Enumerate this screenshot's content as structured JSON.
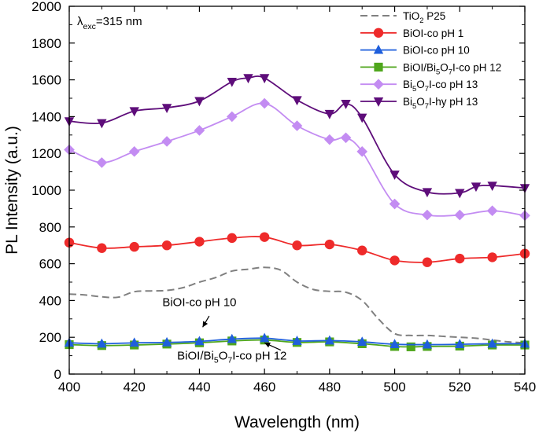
{
  "chart_data": {
    "type": "line",
    "title": "",
    "annotation_excitation": {
      "symbol": "λ",
      "subscript": "exc",
      "text": "=315 nm"
    },
    "xlabel": "Wavelength (nm)",
    "ylabel": "PL Intensity (a.u.)",
    "xlim": [
      400,
      540
    ],
    "ylim": [
      0,
      2000
    ],
    "xticks": [
      400,
      420,
      440,
      460,
      480,
      500,
      520,
      540
    ],
    "yticks": [
      0,
      200,
      400,
      600,
      800,
      1000,
      1200,
      1400,
      1600,
      1800,
      2000
    ],
    "grid": false,
    "legend_position": "top-right",
    "series": [
      {
        "name": "TiO2 P25",
        "legend": [
          {
            "t": "TiO"
          },
          {
            "t": "2",
            "sub": true
          },
          {
            "t": " P25"
          }
        ],
        "color": "#808080",
        "dash": true,
        "marker": "none",
        "x": [
          400,
          405,
          410,
          415,
          420,
          425,
          430,
          435,
          440,
          445,
          450,
          455,
          460,
          465,
          470,
          475,
          480,
          485,
          490,
          495,
          500,
          505,
          510,
          515,
          520,
          525,
          530,
          535,
          540
        ],
        "y": [
          435,
          430,
          420,
          418,
          448,
          452,
          455,
          470,
          500,
          525,
          560,
          570,
          580,
          565,
          500,
          460,
          450,
          445,
          400,
          300,
          220,
          210,
          210,
          205,
          200,
          195,
          185,
          175,
          170
        ]
      },
      {
        "name": "BiOI-co pH 1",
        "legend": [
          {
            "t": "BiOI-co pH 1"
          }
        ],
        "color": "#ee2a2a",
        "dash": false,
        "marker": "circle",
        "x": [
          400,
          410,
          420,
          430,
          440,
          450,
          460,
          470,
          480,
          490,
          500,
          510,
          520,
          530,
          540
        ],
        "y": [
          715,
          685,
          692,
          700,
          720,
          740,
          745,
          700,
          705,
          672,
          618,
          608,
          628,
          635,
          655
        ]
      },
      {
        "name": "BiOI-co pH 10",
        "legend": [
          {
            "t": "BiOI-co pH 10"
          }
        ],
        "color": "#1f5fdc",
        "dash": false,
        "marker": "triangle-up",
        "x": [
          400,
          410,
          420,
          430,
          440,
          450,
          460,
          470,
          480,
          490,
          500,
          510,
          520,
          530,
          540
        ],
        "y": [
          170,
          165,
          170,
          172,
          178,
          190,
          195,
          180,
          182,
          175,
          162,
          160,
          162,
          165,
          165
        ]
      },
      {
        "name": "BiOI/Bi5O7I-co pH 12",
        "legend": [
          {
            "t": "BiOI/Bi"
          },
          {
            "t": "5",
            "sub": true
          },
          {
            "t": "O"
          },
          {
            "t": "7",
            "sub": true
          },
          {
            "t": "I-co pH 12"
          }
        ],
        "color": "#4fa61c",
        "dash": false,
        "marker": "square",
        "x": [
          400,
          410,
          420,
          430,
          440,
          450,
          460,
          470,
          480,
          490,
          500,
          505,
          510,
          520,
          530,
          540
        ],
        "y": [
          160,
          155,
          158,
          163,
          170,
          180,
          185,
          172,
          175,
          165,
          150,
          148,
          150,
          152,
          158,
          158
        ]
      },
      {
        "name": "Bi5O7I-co pH 13",
        "legend": [
          {
            "t": "Bi"
          },
          {
            "t": "5",
            "sub": true
          },
          {
            "t": "O"
          },
          {
            "t": "7",
            "sub": true
          },
          {
            "t": "I-co pH 13"
          }
        ],
        "color": "#c38cf2",
        "dash": false,
        "marker": "diamond",
        "x": [
          400,
          410,
          420,
          430,
          440,
          450,
          460,
          470,
          480,
          485,
          490,
          500,
          510,
          520,
          530,
          540
        ],
        "y": [
          1220,
          1150,
          1210,
          1265,
          1325,
          1400,
          1472,
          1350,
          1275,
          1285,
          1210,
          925,
          865,
          865,
          888,
          862
        ]
      },
      {
        "name": "Bi5O7I-hy pH 13",
        "legend": [
          {
            "t": "Bi"
          },
          {
            "t": "5",
            "sub": true
          },
          {
            "t": "O"
          },
          {
            "t": "7",
            "sub": true
          },
          {
            "t": "I-hy pH 13"
          }
        ],
        "color": "#5e0d7a",
        "dash": false,
        "marker": "triangle-down",
        "x": [
          400,
          410,
          420,
          430,
          440,
          450,
          455,
          460,
          470,
          480,
          485,
          490,
          500,
          510,
          520,
          525,
          530,
          540
        ],
        "y": [
          1375,
          1365,
          1430,
          1448,
          1485,
          1590,
          1610,
          1610,
          1490,
          1415,
          1470,
          1395,
          1085,
          990,
          985,
          1020,
          1025,
          1012
        ]
      }
    ],
    "annotations": [
      {
        "parts": [
          {
            "t": "BiOI-co pH 10"
          }
        ],
        "label_x": 440,
        "label_y": 370,
        "arrow_from": [
          443,
          316
        ],
        "arrow_to": [
          441,
          255
        ]
      },
      {
        "parts": [
          {
            "t": "BiOI/Bi"
          },
          {
            "t": "5",
            "sub": true
          },
          {
            "t": "O"
          },
          {
            "t": "7",
            "sub": true
          },
          {
            "t": "I-co pH 12"
          }
        ],
        "label_x": 450,
        "label_y": 80,
        "arrow_from": [
          465,
          130
        ],
        "arrow_to": [
          460,
          170
        ]
      }
    ]
  }
}
